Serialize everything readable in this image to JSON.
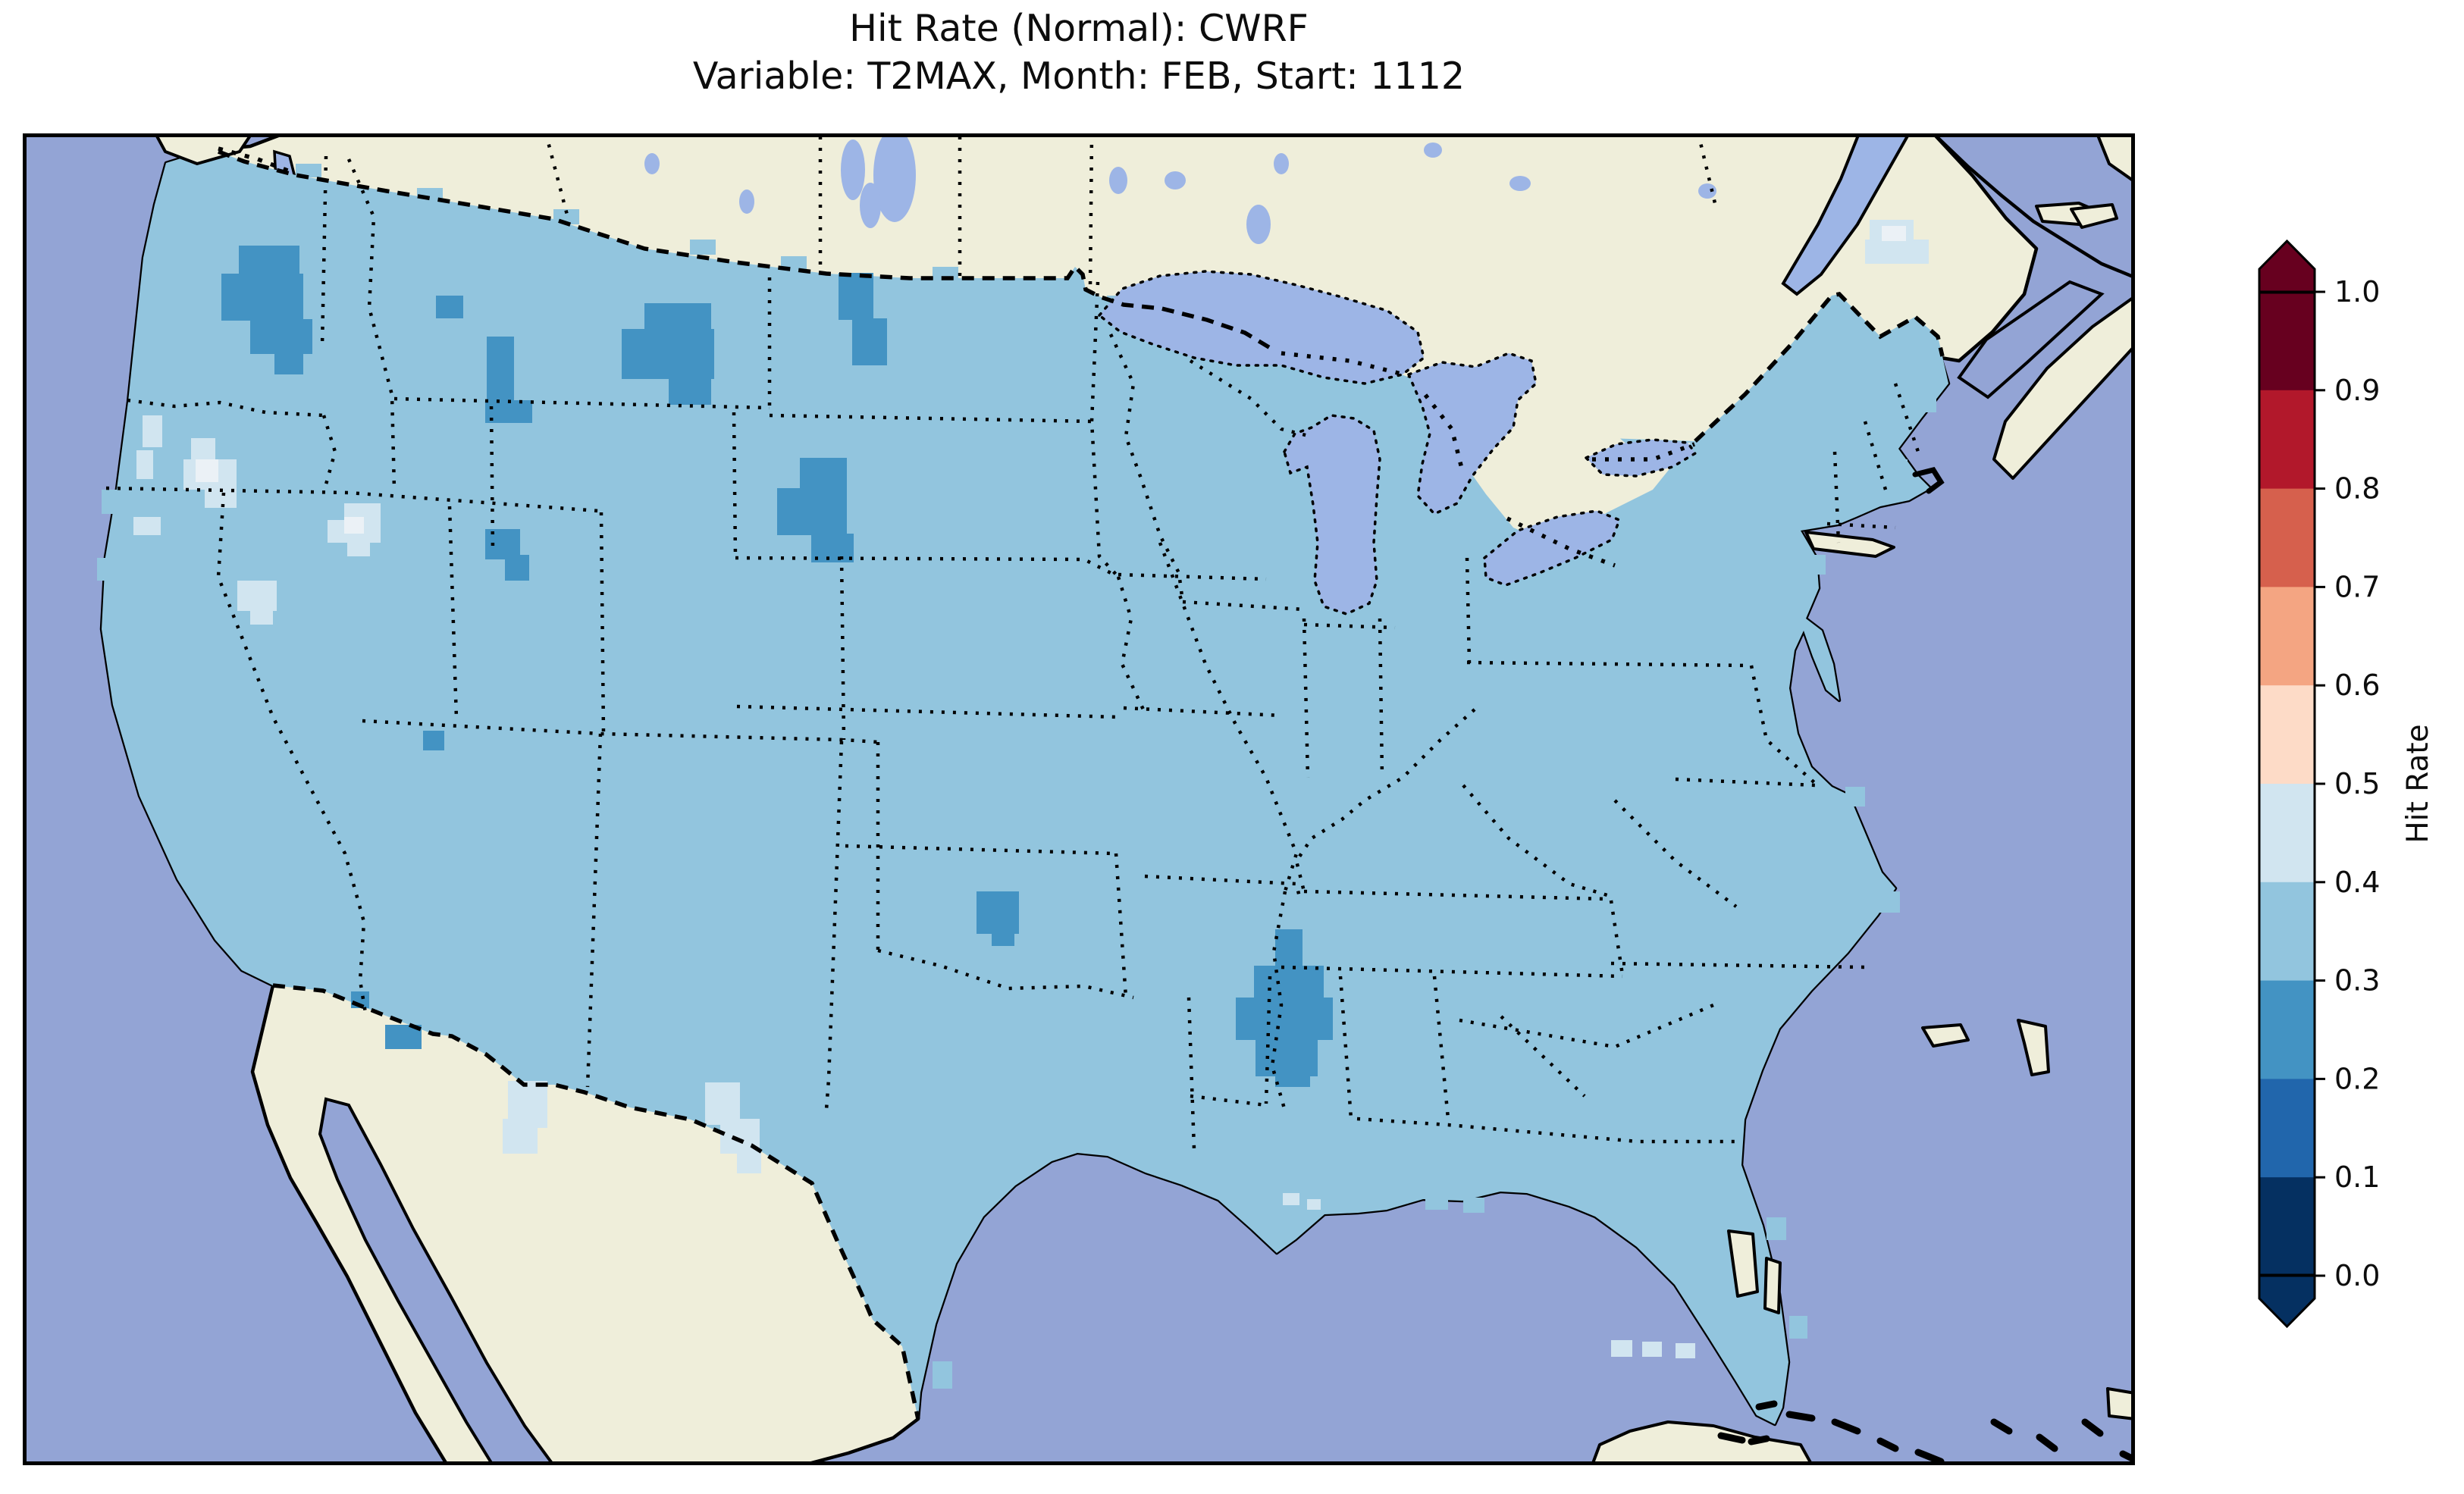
{
  "title": {
    "line1": "Hit Rate (Normal): CWRF",
    "line2": "Variable: T2MAX, Month: FEB, Start: 1112"
  },
  "colorbar": {
    "label": "Hit Rate",
    "ticks": [
      "1.0",
      "0.9",
      "0.8",
      "0.7",
      "0.6",
      "0.5",
      "0.4",
      "0.3",
      "0.2",
      "0.1",
      "0.0"
    ],
    "bins": [
      {
        "range": "0.9-1.0",
        "color": "#67001f"
      },
      {
        "range": "0.8-0.9",
        "color": "#b2182b"
      },
      {
        "range": "0.7-0.8",
        "color": "#d6604d"
      },
      {
        "range": "0.6-0.7",
        "color": "#f4a582"
      },
      {
        "range": "0.5-0.6",
        "color": "#fddbc7"
      },
      {
        "range": "0.4-0.5",
        "color": "#d1e5f0"
      },
      {
        "range": "0.3-0.4",
        "color": "#92c5de"
      },
      {
        "range": "0.2-0.3",
        "color": "#4393c3"
      },
      {
        "range": "0.1-0.2",
        "color": "#2166ac"
      },
      {
        "range": "0.0-0.1",
        "color": "#053061"
      }
    ],
    "extend": {
      "over": "#67001f",
      "under": "#053061"
    }
  },
  "map": {
    "colors": {
      "ocean": "#93a4d5",
      "land": "#efeeda",
      "lake": "#9db5e6",
      "cell_main": "#92c5de",
      "dark": "#4393c3",
      "pale": "#d1e5f0",
      "white": "#ebf1f6",
      "spill": "#92c5de",
      "line": "#000000"
    },
    "patches": {
      "dark": [
        [
          285,
          148,
          80,
          42
        ],
        [
          262,
          185,
          108,
          62
        ],
        [
          300,
          245,
          82,
          46
        ],
        [
          332,
          288,
          38,
          30
        ],
        [
          545,
          214,
          36,
          30
        ],
        [
          612,
          268,
          36,
          108
        ],
        [
          610,
          352,
          62,
          30
        ],
        [
          820,
          224,
          88,
          66
        ],
        [
          790,
          258,
          122,
          66
        ],
        [
          852,
          322,
          56,
          36
        ],
        [
          1076,
          184,
          46,
          62
        ],
        [
          1094,
          244,
          46,
          62
        ],
        [
          1025,
          428,
          62,
          46
        ],
        [
          995,
          468,
          92,
          62
        ],
        [
          1040,
          528,
          56,
          38
        ],
        [
          610,
          522,
          46,
          40
        ],
        [
          636,
          556,
          32,
          34
        ],
        [
          528,
          788,
          28,
          26
        ],
        [
          433,
          1132,
          24,
          22
        ],
        [
          478,
          1176,
          48,
          32
        ],
        [
          1258,
          1000,
          56,
          56
        ],
        [
          1278,
          1046,
          30,
          26
        ],
        [
          1652,
          1050,
          36,
          56
        ],
        [
          1624,
          1098,
          92,
          60
        ],
        [
          1600,
          1140,
          128,
          56
        ],
        [
          1626,
          1194,
          82,
          50
        ],
        [
          1652,
          1232,
          46,
          26
        ]
      ],
      "pale": [
        [
          222,
          402,
          32,
          32
        ],
        [
          212,
          430,
          70,
          40
        ],
        [
          240,
          466,
          42,
          28
        ],
        [
          146,
          506,
          36,
          24
        ],
        [
          424,
          488,
          48,
          28
        ],
        [
          402,
          510,
          70,
          30
        ],
        [
          428,
          538,
          30,
          20
        ],
        [
          283,
          590,
          52,
          40
        ],
        [
          300,
          624,
          30,
          24
        ],
        [
          158,
          372,
          26,
          42
        ],
        [
          150,
          418,
          22,
          38
        ],
        [
          640,
          1250,
          52,
          62
        ],
        [
          633,
          1300,
          46,
          46
        ],
        [
          900,
          1252,
          46,
          56
        ],
        [
          920,
          1300,
          52,
          46
        ],
        [
          942,
          1342,
          32,
          30
        ],
        [
          2436,
          114,
          58,
          28
        ],
        [
          2430,
          140,
          84,
          32
        ],
        [
          2095,
          1592,
          28,
          22
        ],
        [
          2136,
          1594,
          26,
          20
        ],
        [
          2180,
          1596,
          26,
          20
        ],
        [
          1662,
          1398,
          22,
          16
        ],
        [
          1694,
          1406,
          18,
          14
        ]
      ],
      "white": [
        [
          228,
          430,
          30,
          30
        ],
        [
          424,
          506,
          26,
          22
        ],
        [
          2452,
          122,
          32,
          20
        ]
      ],
      "spill": [
        [
          192,
          38,
          30,
          30
        ],
        [
          150,
          330,
          24,
          30
        ],
        [
          104,
          470,
          22,
          32
        ],
        [
          98,
          560,
          20,
          30
        ],
        [
          2494,
          340,
          30,
          28
        ],
        [
          2460,
          430,
          26,
          26
        ],
        [
          2352,
          556,
          26,
          26
        ],
        [
          2404,
          862,
          26,
          26
        ],
        [
          2448,
          1000,
          28,
          28
        ],
        [
          2300,
          1430,
          26,
          30
        ],
        [
          2330,
          1560,
          24,
          30
        ],
        [
          1850,
          1398,
          30,
          22
        ],
        [
          1900,
          1404,
          28,
          20
        ],
        [
          1188,
          1450,
          30,
          44
        ],
        [
          1176,
          1520,
          28,
          40
        ],
        [
          1200,
          1620,
          26,
          36
        ],
        [
          1690,
          330,
          26,
          26
        ],
        [
          1698,
          556,
          24,
          40
        ],
        [
          1700,
          620,
          22,
          36
        ],
        [
          360,
          40,
          34,
          18
        ],
        [
          520,
          72,
          34,
          18
        ],
        [
          700,
          100,
          34,
          20
        ],
        [
          880,
          140,
          34,
          20
        ],
        [
          1000,
          162,
          34,
          18
        ],
        [
          1200,
          176,
          34,
          16
        ],
        [
          1430,
          214,
          30,
          16
        ],
        [
          1560,
          240,
          30,
          16
        ]
      ]
    }
  },
  "chart_data": {
    "type": "heatmap",
    "title": "Hit Rate (Normal): CWRF",
    "subtitle": "Variable: T2MAX, Month: FEB, Start: 1112",
    "colorbar_label": "Hit Rate",
    "value_range": [
      0.0,
      1.0
    ],
    "colormap": "RdBu_r, 10 discrete bins of 0.1, extended arrows both ends",
    "bin_edges": [
      0.0,
      0.1,
      0.2,
      0.3,
      0.4,
      0.5,
      0.6,
      0.7,
      0.8,
      0.9,
      1.0
    ],
    "region": "Contiguous United States gridded model field (ocean, Canada and Mexico masked)",
    "dominant_hit_rate": "0.3-0.4",
    "features": [
      {
        "region": "east-central Washington",
        "hit_rate": "0.2-0.3"
      },
      {
        "region": "western Montana (two small areas)",
        "hit_rate": "0.2-0.3"
      },
      {
        "region": "eastern Montana",
        "hit_rate": "0.2-0.3"
      },
      {
        "region": "northern North Dakota",
        "hit_rate": "0.2-0.3"
      },
      {
        "region": "central South Dakota",
        "hit_rate": "0.2-0.3"
      },
      {
        "region": "northern Utah",
        "hit_rate": "0.2-0.3"
      },
      {
        "region": "Arizona-New Mexico border cells",
        "hit_rate": "0.2-0.3"
      },
      {
        "region": "Texas panhandle (Childress area)",
        "hit_rate": "0.2-0.3"
      },
      {
        "region": "western Alabama / eastern Mississippi diamond",
        "hit_rate": "0.2-0.3"
      },
      {
        "region": "Nevada / eastern California scattered cells",
        "hit_rate": "0.4-0.5"
      },
      {
        "region": "southwest New Mexico and Big Bend Texas",
        "hit_rate": "0.4-0.5"
      },
      {
        "region": "northern Maine",
        "hit_rate": "0.4-0.5"
      },
      {
        "region": "south Florida / Keys vicinity",
        "hit_rate": "0.4-0.5"
      },
      {
        "region": "remainder of CONUS",
        "hit_rate": "0.3-0.4"
      }
    ]
  }
}
